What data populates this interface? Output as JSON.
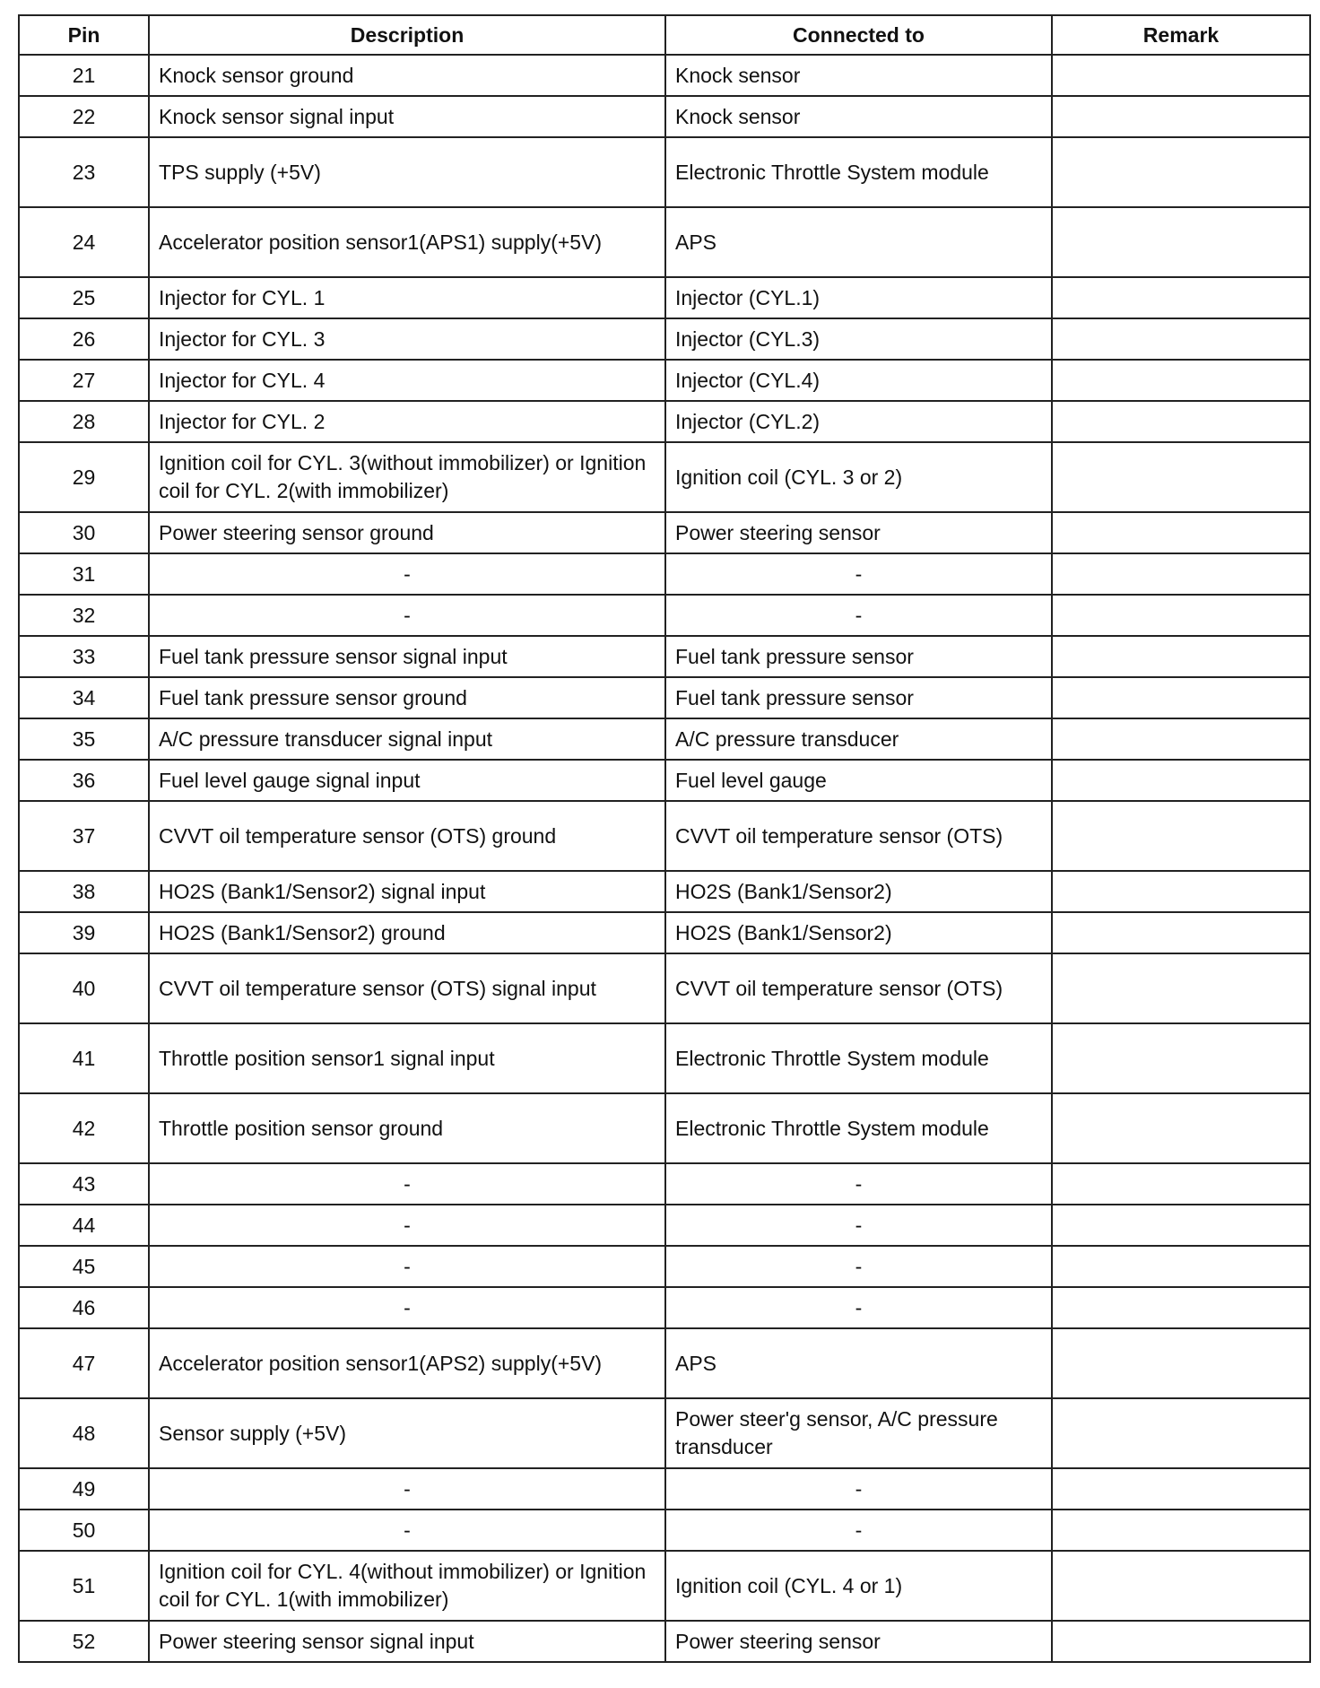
{
  "headers": [
    "Pin",
    "Description",
    "Connected to",
    "Remark"
  ],
  "rows": [
    {
      "pin": "21",
      "description": "Knock sensor ground",
      "connected": "Knock sensor",
      "remark": ""
    },
    {
      "pin": "22",
      "description": "Knock sensor signal input",
      "connected": "Knock sensor",
      "remark": ""
    },
    {
      "pin": "23",
      "description": "TPS supply (+5V)",
      "connected": "Electronic Throttle System module",
      "remark": ""
    },
    {
      "pin": "24",
      "description": "Accelerator position sensor1(APS1) supply(+5V)",
      "connected": "APS",
      "remark": ""
    },
    {
      "pin": "25",
      "description": "Injector for CYL. 1",
      "connected": "Injector (CYL.1)",
      "remark": ""
    },
    {
      "pin": "26",
      "description": "Injector for CYL. 3",
      "connected": "Injector (CYL.3)",
      "remark": ""
    },
    {
      "pin": "27",
      "description": "Injector for CYL. 4",
      "connected": "Injector (CYL.4)",
      "remark": ""
    },
    {
      "pin": "28",
      "description": "Injector for CYL. 2",
      "connected": "Injector (CYL.2)",
      "remark": ""
    },
    {
      "pin": "29",
      "description": "Ignition coil for CYL. 3(without immobilizer) or Ignition coil for CYL. 2(with immobilizer)",
      "connected": "Ignition coil (CYL. 3 or 2)",
      "remark": ""
    },
    {
      "pin": "30",
      "description": "Power steering sensor ground",
      "connected": "Power steering sensor",
      "remark": ""
    },
    {
      "pin": "31",
      "description": "-",
      "connected": "-",
      "remark": ""
    },
    {
      "pin": "32",
      "description": "-",
      "connected": "-",
      "remark": ""
    },
    {
      "pin": "33",
      "description": "Fuel tank pressure sensor signal input",
      "connected": "Fuel tank pressure sensor",
      "remark": ""
    },
    {
      "pin": "34",
      "description": "Fuel tank pressure sensor ground",
      "connected": "Fuel tank pressure sensor",
      "remark": ""
    },
    {
      "pin": "35",
      "description": "A/C pressure transducer signal input",
      "connected": "A/C pressure transducer",
      "remark": ""
    },
    {
      "pin": "36",
      "description": "Fuel level gauge signal input",
      "connected": "Fuel level gauge",
      "remark": ""
    },
    {
      "pin": "37",
      "description": "CVVT oil temperature sensor (OTS) ground",
      "connected": "CVVT oil temperature sensor (OTS)",
      "remark": ""
    },
    {
      "pin": "38",
      "description": "HO2S (Bank1/Sensor2) signal input",
      "connected": "HO2S (Bank1/Sensor2)",
      "remark": ""
    },
    {
      "pin": "39",
      "description": "HO2S (Bank1/Sensor2) ground",
      "connected": "HO2S (Bank1/Sensor2)",
      "remark": ""
    },
    {
      "pin": "40",
      "description": "CVVT oil temperature sensor (OTS) signal input",
      "connected": "CVVT oil temperature sensor (OTS)",
      "remark": ""
    },
    {
      "pin": "41",
      "description": "Throttle position sensor1 signal input",
      "connected": "Electronic Throttle System module",
      "remark": ""
    },
    {
      "pin": "42",
      "description": "Throttle position sensor ground",
      "connected": "Electronic Throttle System module",
      "remark": ""
    },
    {
      "pin": "43",
      "description": "-",
      "connected": "-",
      "remark": ""
    },
    {
      "pin": "44",
      "description": "-",
      "connected": "-",
      "remark": ""
    },
    {
      "pin": "45",
      "description": "-",
      "connected": "-",
      "remark": ""
    },
    {
      "pin": "46",
      "description": "-",
      "connected": "-",
      "remark": ""
    },
    {
      "pin": "47",
      "description": "Accelerator position sensor1(APS2) supply(+5V)",
      "connected": "APS",
      "remark": ""
    },
    {
      "pin": "48",
      "description": "Sensor supply (+5V)",
      "connected": "Power steer'g sensor, A/C pressure transducer",
      "remark": ""
    },
    {
      "pin": "49",
      "description": "-",
      "connected": "-",
      "remark": ""
    },
    {
      "pin": "50",
      "description": "-",
      "connected": "-",
      "remark": ""
    },
    {
      "pin": "51",
      "description": "Ignition coil for CYL. 4(without immobilizer) or Ignition coil for CYL. 1(with immobilizer)",
      "connected": "Ignition coil (CYL. 4 or 1)",
      "remark": ""
    },
    {
      "pin": "52",
      "description": "Power steering sensor signal input",
      "connected": "Power steering sensor",
      "remark": ""
    }
  ]
}
